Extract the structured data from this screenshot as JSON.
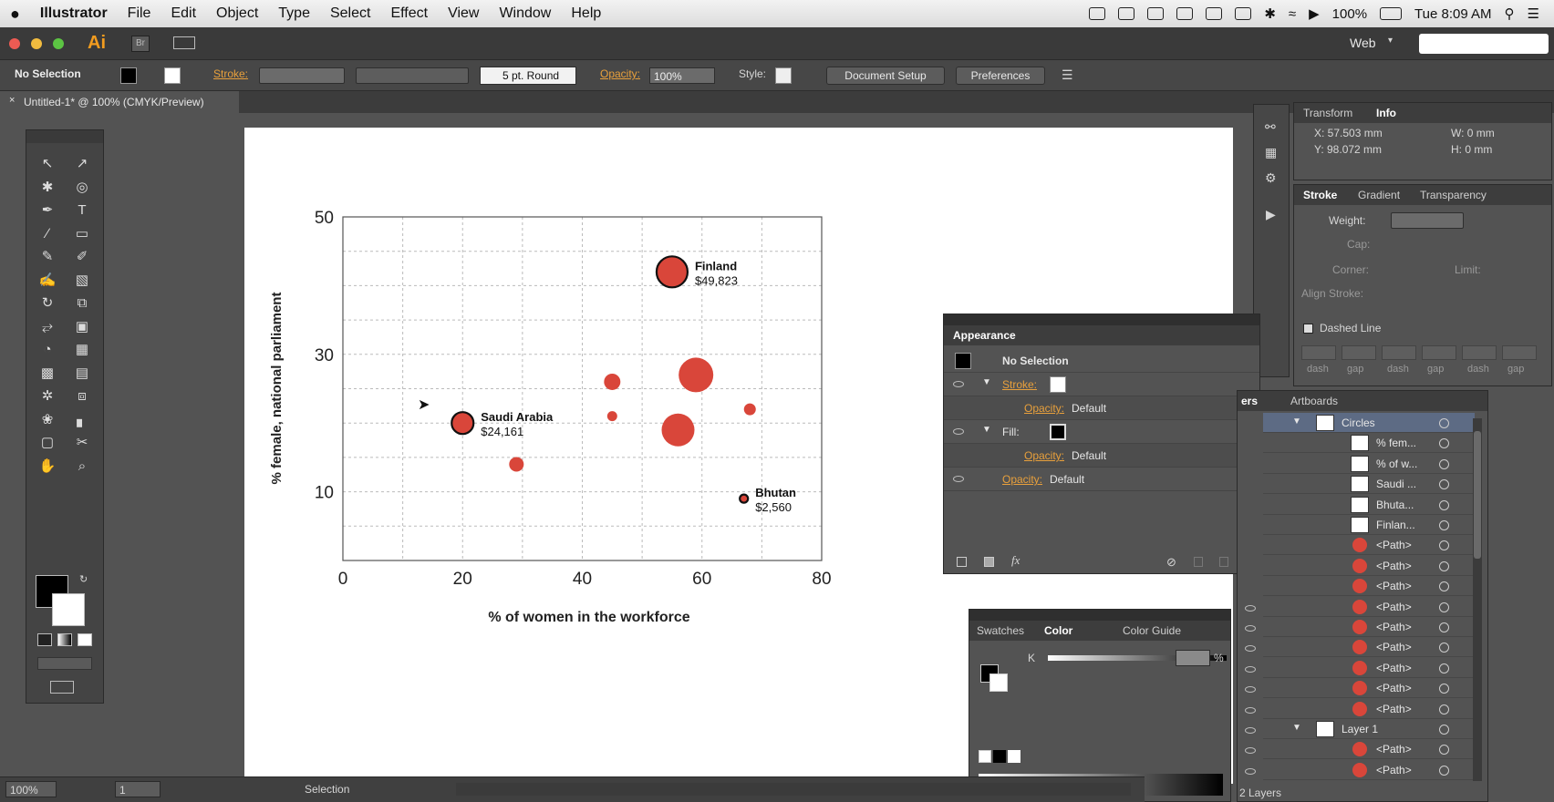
{
  "menubar": {
    "apple": "",
    "app": "Illustrator",
    "items": [
      "File",
      "Edit",
      "Object",
      "Type",
      "Select",
      "Effect",
      "View",
      "Window",
      "Help"
    ],
    "battery": "100%",
    "clock": "Tue 8:09 AM"
  },
  "titlebar": {
    "logo": "Ai",
    "br": "Br",
    "workspace": "Web"
  },
  "controlbar": {
    "selection": "No Selection",
    "stroke_label": "Stroke:",
    "brush": "5 pt. Round",
    "opacity_label": "Opacity:",
    "opacity_value": "100%",
    "style_label": "Style:",
    "doc_setup": "Document Setup",
    "preferences": "Preferences"
  },
  "doc": {
    "tab_title": "Untitled-1* @ 100% (CMYK/Preview)"
  },
  "chart_data": {
    "type": "scatter",
    "xlabel": "% of women in the workforce",
    "ylabel": "% female, national parliament",
    "xlim": [
      0,
      80
    ],
    "ylim": [
      0,
      50
    ],
    "xticks": [
      "0",
      "20",
      "40",
      "60",
      "80"
    ],
    "yticks": [
      "10",
      "30",
      "50"
    ],
    "points": [
      {
        "x": 55,
        "y": 42,
        "size": 34,
        "label": "Finland",
        "sublabel": "$49,823",
        "stroke": true
      },
      {
        "x": 20,
        "y": 20,
        "size": 24,
        "label": "Saudi Arabia",
        "sublabel": "$24,161",
        "stroke": true
      },
      {
        "x": 67,
        "y": 9,
        "size": 9,
        "label": "Bhutan",
        "sublabel": "$2,560",
        "stroke": true
      },
      {
        "x": 45,
        "y": 26,
        "size": 18,
        "label": "",
        "sublabel": "",
        "stroke": false
      },
      {
        "x": 59,
        "y": 27,
        "size": 38,
        "label": "",
        "sublabel": "",
        "stroke": false
      },
      {
        "x": 68,
        "y": 22,
        "size": 13,
        "label": "",
        "sublabel": "",
        "stroke": false
      },
      {
        "x": 45,
        "y": 21,
        "size": 11,
        "label": "",
        "sublabel": "",
        "stroke": false
      },
      {
        "x": 56,
        "y": 19,
        "size": 36,
        "label": "",
        "sublabel": "",
        "stroke": false
      },
      {
        "x": 29,
        "y": 14,
        "size": 16,
        "label": "",
        "sublabel": "",
        "stroke": false
      }
    ],
    "colors": {
      "fill": "#d9463a",
      "stroke": "#111111"
    },
    "grid": true
  },
  "info_panel": {
    "tabs": [
      "Transform",
      "Info"
    ],
    "x": "X: 57.503 mm",
    "y": "Y: 98.072 mm",
    "w": "W: 0 mm",
    "h": "H: 0 mm"
  },
  "stroke_panel": {
    "tabs": [
      "Stroke",
      "Gradient",
      "Transparency"
    ],
    "weight": "Weight:",
    "cap": "Cap:",
    "corner": "Corner:",
    "limit": "Limit:",
    "align": "Align Stroke:",
    "dashed": "Dashed Line",
    "dash_labels": [
      "dash",
      "gap",
      "dash",
      "gap",
      "dash",
      "gap"
    ]
  },
  "appearance": {
    "title": "Appearance",
    "selection": "No Selection",
    "stroke": "Stroke:",
    "fill": "Fill:",
    "opacity": "Opacity:",
    "default": "Default"
  },
  "color_panel": {
    "tabs": [
      "Swatches",
      "Color",
      "Color Guide"
    ],
    "k": "K",
    "pct": "%"
  },
  "layers": {
    "tabs": [
      "ers",
      "Artboards"
    ],
    "items": [
      "Circles",
      "% fem...",
      "% of w...",
      "Saudi ...",
      "Bhuta...",
      "Finlan...",
      "<Path>",
      "<Path>",
      "<Path>",
      "<Path>",
      "<Path>",
      "<Path>",
      "<Path>",
      "<Path>",
      "<Path>",
      "Layer 1",
      "<Path>",
      "<Path>"
    ],
    "count": "2 Layers"
  },
  "status": {
    "zoom": "100%",
    "page": "1",
    "tool": "Selection"
  }
}
